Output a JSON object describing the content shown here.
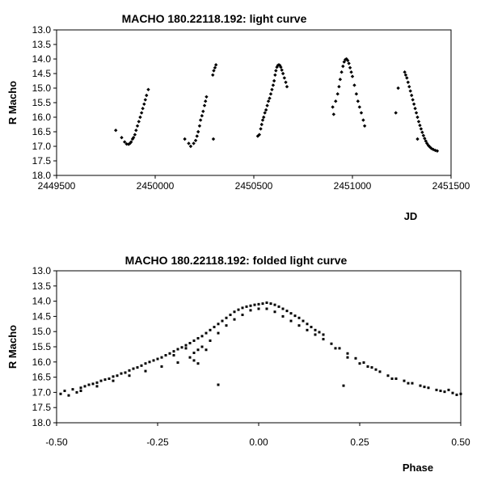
{
  "chart_data": [
    {
      "type": "scatter",
      "title": "MACHO 180.22118.192: light curve",
      "xlabel": "JD",
      "ylabel": "R Macho",
      "xlim": [
        2449500,
        2451500
      ],
      "ylim": [
        13.0,
        18.0
      ],
      "y_reversed": true,
      "grid": false,
      "legend": "none",
      "x_ticks": [
        "2449500",
        "2450000",
        "2450500",
        "2451000",
        "2451500"
      ],
      "y_ticks": [
        "13.0",
        "13.5",
        "14.0",
        "14.5",
        "15.0",
        "15.5",
        "16.0",
        "16.5",
        "17.0",
        "17.5",
        "18.0"
      ],
      "points": [
        [
          2449800,
          16.45
        ],
        [
          2449830,
          16.7
        ],
        [
          2449845,
          16.85
        ],
        [
          2449855,
          16.92
        ],
        [
          2449865,
          16.93
        ],
        [
          2449872,
          16.9
        ],
        [
          2449878,
          16.85
        ],
        [
          2449885,
          16.75
        ],
        [
          2449890,
          16.7
        ],
        [
          2449897,
          16.6
        ],
        [
          2449903,
          16.45
        ],
        [
          2449910,
          16.3
        ],
        [
          2449917,
          16.15
        ],
        [
          2449924,
          16.0
        ],
        [
          2449931,
          15.85
        ],
        [
          2449937,
          15.7
        ],
        [
          2449944,
          15.55
        ],
        [
          2449950,
          15.4
        ],
        [
          2449956,
          15.25
        ],
        [
          2449965,
          15.05
        ],
        [
          2450150,
          16.75
        ],
        [
          2450170,
          16.9
        ],
        [
          2450180,
          17.0
        ],
        [
          2450195,
          16.9
        ],
        [
          2450205,
          16.8
        ],
        [
          2450212,
          16.65
        ],
        [
          2450218,
          16.5
        ],
        [
          2450225,
          16.3
        ],
        [
          2450230,
          16.1
        ],
        [
          2450237,
          15.95
        ],
        [
          2450243,
          15.8
        ],
        [
          2450250,
          15.6
        ],
        [
          2450255,
          15.45
        ],
        [
          2450260,
          15.3
        ],
        [
          2450295,
          16.75
        ],
        [
          2450292,
          14.55
        ],
        [
          2450297,
          14.4
        ],
        [
          2450303,
          14.3
        ],
        [
          2450308,
          14.2
        ],
        [
          2450520,
          16.65
        ],
        [
          2450528,
          16.6
        ],
        [
          2450535,
          16.4
        ],
        [
          2450540,
          16.25
        ],
        [
          2450545,
          16.1
        ],
        [
          2450550,
          16.0
        ],
        [
          2450556,
          15.85
        ],
        [
          2450562,
          15.75
        ],
        [
          2450568,
          15.6
        ],
        [
          2450574,
          15.45
        ],
        [
          2450580,
          15.35
        ],
        [
          2450586,
          15.2
        ],
        [
          2450592,
          15.05
        ],
        [
          2450598,
          14.9
        ],
        [
          2450603,
          14.75
        ],
        [
          2450608,
          14.55
        ],
        [
          2450612,
          14.4
        ],
        [
          2450617,
          14.28
        ],
        [
          2450622,
          14.22
        ],
        [
          2450627,
          14.2
        ],
        [
          2450632,
          14.22
        ],
        [
          2450637,
          14.28
        ],
        [
          2450642,
          14.38
        ],
        [
          2450648,
          14.5
        ],
        [
          2450655,
          14.65
        ],
        [
          2450662,
          14.8
        ],
        [
          2450668,
          14.95
        ],
        [
          2450900,
          15.65
        ],
        [
          2450905,
          15.9
        ],
        [
          2450915,
          15.45
        ],
        [
          2450925,
          15.2
        ],
        [
          2450932,
          14.95
        ],
        [
          2450938,
          14.7
        ],
        [
          2450945,
          14.45
        ],
        [
          2450952,
          14.25
        ],
        [
          2450958,
          14.1
        ],
        [
          2450964,
          14.02
        ],
        [
          2450970,
          14.0
        ],
        [
          2450976,
          14.05
        ],
        [
          2450982,
          14.15
        ],
        [
          2450988,
          14.3
        ],
        [
          2450994,
          14.45
        ],
        [
          2451000,
          14.6
        ],
        [
          2451010,
          14.9
        ],
        [
          2451020,
          15.2
        ],
        [
          2451028,
          15.45
        ],
        [
          2451036,
          15.65
        ],
        [
          2451045,
          15.85
        ],
        [
          2451055,
          16.1
        ],
        [
          2451062,
          16.3
        ],
        [
          2451220,
          15.85
        ],
        [
          2451232,
          15.0
        ],
        [
          2451265,
          14.45
        ],
        [
          2451270,
          14.55
        ],
        [
          2451276,
          14.65
        ],
        [
          2451282,
          14.8
        ],
        [
          2451288,
          14.95
        ],
        [
          2451294,
          15.1
        ],
        [
          2451300,
          15.25
        ],
        [
          2451306,
          15.4
        ],
        [
          2451312,
          15.55
        ],
        [
          2451318,
          15.7
        ],
        [
          2451324,
          15.85
        ],
        [
          2451330,
          16.0
        ],
        [
          2451336,
          16.15
        ],
        [
          2451342,
          16.28
        ],
        [
          2451348,
          16.4
        ],
        [
          2451354,
          16.52
        ],
        [
          2451360,
          16.63
        ],
        [
          2451366,
          16.73
        ],
        [
          2451372,
          16.82
        ],
        [
          2451378,
          16.9
        ],
        [
          2451385,
          16.97
        ],
        [
          2451392,
          17.02
        ],
        [
          2451400,
          17.07
        ],
        [
          2451410,
          17.11
        ],
        [
          2451420,
          17.14
        ],
        [
          2451430,
          17.16
        ],
        [
          2451330,
          16.75
        ]
      ]
    },
    {
      "type": "scatter",
      "title": "MACHO 180.22118.192: folded light curve",
      "xlabel": "Phase",
      "ylabel": "R Macho",
      "xlim": [
        -0.5,
        0.5
      ],
      "ylim": [
        13.0,
        18.0
      ],
      "y_reversed": true,
      "grid": false,
      "legend": "none",
      "x_ticks": [
        "-0.50",
        "-0.25",
        "0.00",
        "0.25",
        "0.50"
      ],
      "y_ticks": [
        "13.0",
        "13.5",
        "14.0",
        "14.5",
        "15.0",
        "15.5",
        "16.0",
        "16.5",
        "17.0",
        "17.5",
        "18.0"
      ],
      "points": [
        [
          -0.49,
          17.05
        ],
        [
          -0.48,
          16.95
        ],
        [
          -0.47,
          17.1
        ],
        [
          -0.46,
          16.9
        ],
        [
          -0.45,
          17.0
        ],
        [
          -0.44,
          16.85
        ],
        [
          -0.43,
          16.8
        ],
        [
          -0.42,
          16.75
        ],
        [
          -0.41,
          16.72
        ],
        [
          -0.4,
          16.68
        ],
        [
          -0.39,
          16.62
        ],
        [
          -0.38,
          16.58
        ],
        [
          -0.37,
          16.55
        ],
        [
          -0.36,
          16.48
        ],
        [
          -0.35,
          16.45
        ],
        [
          -0.34,
          16.38
        ],
        [
          -0.33,
          16.35
        ],
        [
          -0.32,
          16.28
        ],
        [
          -0.31,
          16.22
        ],
        [
          -0.3,
          16.18
        ],
        [
          -0.29,
          16.12
        ],
        [
          -0.28,
          16.05
        ],
        [
          -0.27,
          16.0
        ],
        [
          -0.26,
          15.95
        ],
        [
          -0.25,
          15.9
        ],
        [
          -0.24,
          15.85
        ],
        [
          -0.23,
          15.78
        ],
        [
          -0.22,
          15.72
        ],
        [
          -0.21,
          15.65
        ],
        [
          -0.2,
          15.58
        ],
        [
          -0.19,
          15.52
        ],
        [
          -0.18,
          15.45
        ],
        [
          -0.17,
          15.38
        ],
        [
          -0.16,
          15.3
        ],
        [
          -0.15,
          15.22
        ],
        [
          -0.14,
          15.15
        ],
        [
          -0.13,
          15.05
        ],
        [
          -0.12,
          14.95
        ],
        [
          -0.11,
          14.85
        ],
        [
          -0.1,
          14.75
        ],
        [
          -0.09,
          14.65
        ],
        [
          -0.08,
          14.55
        ],
        [
          -0.07,
          14.45
        ],
        [
          -0.06,
          14.35
        ],
        [
          -0.05,
          14.28
        ],
        [
          -0.04,
          14.22
        ],
        [
          -0.03,
          14.18
        ],
        [
          -0.02,
          14.15
        ],
        [
          -0.01,
          14.12
        ],
        [
          0.0,
          14.1
        ],
        [
          0.01,
          14.08
        ],
        [
          0.02,
          14.05
        ],
        [
          0.03,
          14.08
        ],
        [
          0.04,
          14.12
        ],
        [
          0.05,
          14.18
        ],
        [
          0.06,
          14.25
        ],
        [
          0.07,
          14.32
        ],
        [
          0.08,
          14.4
        ],
        [
          0.09,
          14.48
        ],
        [
          0.1,
          14.55
        ],
        [
          0.11,
          14.65
        ],
        [
          0.12,
          14.75
        ],
        [
          0.13,
          14.85
        ],
        [
          0.14,
          14.95
        ],
        [
          0.15,
          15.02
        ],
        [
          0.16,
          15.1
        ],
        [
          -0.44,
          16.95
        ],
        [
          -0.4,
          16.8
        ],
        [
          -0.36,
          16.62
        ],
        [
          -0.32,
          16.45
        ],
        [
          -0.28,
          16.3
        ],
        [
          -0.24,
          16.15
        ],
        [
          -0.2,
          16.02
        ],
        [
          -0.17,
          15.85
        ],
        [
          -0.16,
          15.7
        ],
        [
          -0.15,
          15.6
        ],
        [
          -0.14,
          15.5
        ],
        [
          -0.12,
          15.3
        ],
        [
          -0.1,
          15.05
        ],
        [
          -0.08,
          14.8
        ],
        [
          -0.06,
          14.6
        ],
        [
          -0.04,
          14.45
        ],
        [
          -0.02,
          14.3
        ],
        [
          0.0,
          14.25
        ],
        [
          0.02,
          14.25
        ],
        [
          0.04,
          14.35
        ],
        [
          0.06,
          14.5
        ],
        [
          0.08,
          14.65
        ],
        [
          0.1,
          14.8
        ],
        [
          0.12,
          14.95
        ],
        [
          0.14,
          15.1
        ],
        [
          0.16,
          15.25
        ],
        [
          0.18,
          15.4
        ],
        [
          0.2,
          15.55
        ],
        [
          0.22,
          15.72
        ],
        [
          0.24,
          15.88
        ],
        [
          0.26,
          16.02
        ],
        [
          0.28,
          16.18
        ],
        [
          0.3,
          16.32
        ],
        [
          0.32,
          16.45
        ],
        [
          0.34,
          16.55
        ],
        [
          0.36,
          16.62
        ],
        [
          0.38,
          16.7
        ],
        [
          0.4,
          16.78
        ],
        [
          0.42,
          16.85
        ],
        [
          0.44,
          16.92
        ],
        [
          0.46,
          16.98
        ],
        [
          0.48,
          17.02
        ],
        [
          0.5,
          17.05
        ],
        [
          -0.21,
          15.78
        ],
        [
          -0.18,
          15.55
        ],
        [
          -0.16,
          15.95
        ],
        [
          -0.15,
          16.05
        ],
        [
          -0.13,
          15.6
        ],
        [
          -0.1,
          16.75
        ],
        [
          0.21,
          16.78
        ],
        [
          0.19,
          15.55
        ],
        [
          0.22,
          15.85
        ],
        [
          0.25,
          16.05
        ],
        [
          0.27,
          16.15
        ],
        [
          0.29,
          16.25
        ],
        [
          0.33,
          16.55
        ],
        [
          0.37,
          16.7
        ],
        [
          0.41,
          16.82
        ],
        [
          0.45,
          16.95
        ],
        [
          0.47,
          16.92
        ],
        [
          0.49,
          17.08
        ]
      ]
    }
  ]
}
